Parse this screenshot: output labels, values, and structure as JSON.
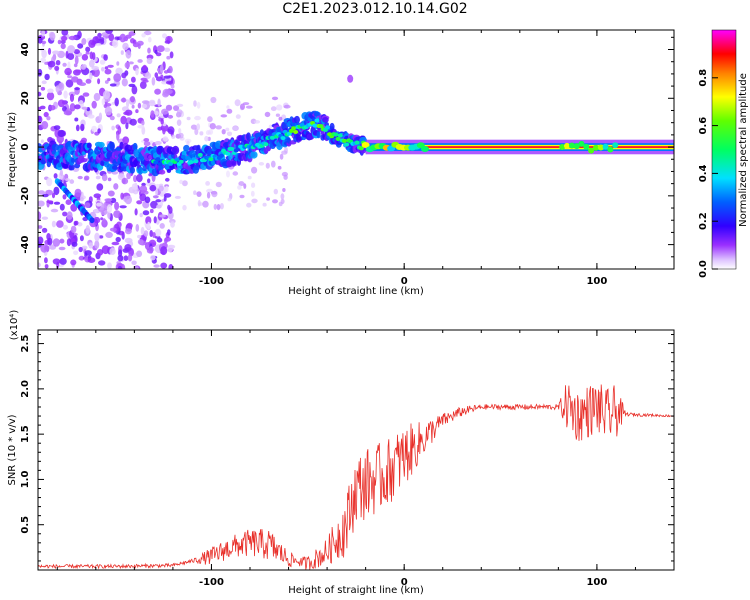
{
  "title": "C2E1.2023.012.10.14.G02",
  "colors": {
    "snr_line": "#e8302a",
    "colorscale": [
      "#ffffff",
      "#d9b3ff",
      "#8800ff",
      "#0000ff",
      "#00ffff",
      "#00ff00",
      "#ffff00",
      "#ff0000",
      "#ff00ff"
    ]
  },
  "chart_data": [
    {
      "type": "heatmap",
      "xlabel": "Height of straight line (km)",
      "ylabel": "Frequency (Hz)",
      "xlim": [
        -190,
        140
      ],
      "ylim": [
        -50,
        48
      ],
      "xticks": [
        {
          "v": -100,
          "label": "-100"
        },
        {
          "v": 0,
          "label": "0"
        },
        {
          "v": 100,
          "label": "100"
        }
      ],
      "yticks": [
        {
          "v": 40,
          "label": "40"
        },
        {
          "v": 20,
          "label": "20"
        },
        {
          "v": 0,
          "label": "0"
        },
        {
          "v": -20,
          "label": "-20"
        },
        {
          "v": -40,
          "label": "-40"
        }
      ],
      "colorbar": {
        "label": "Normalized spectral amplitude",
        "range": [
          0,
          1
        ],
        "ticks": [
          {
            "v": 0.0,
            "label": "0.0"
          },
          {
            "v": 0.2,
            "label": "0.2"
          },
          {
            "v": 0.4,
            "label": "0.4"
          },
          {
            "v": 0.6,
            "label": "0.6"
          },
          {
            "v": 0.8,
            "label": "0.8"
          }
        ]
      },
      "ridge": [
        [
          -190,
          -3
        ],
        [
          -150,
          -4
        ],
        [
          -120,
          -6
        ],
        [
          -100,
          -4
        ],
        [
          -80,
          0
        ],
        [
          -60,
          6
        ],
        [
          -45,
          10
        ],
        [
          -35,
          4
        ],
        [
          -25,
          1
        ],
        [
          -10,
          0
        ],
        [
          0,
          0
        ],
        [
          140,
          0
        ]
      ]
    },
    {
      "type": "line",
      "xlabel": "Height of straight line (km)",
      "ylabel": "SNR (10 * v/v)",
      "y_multiplier": "(x10⁴)",
      "xlim": [
        -190,
        140
      ],
      "ylim": [
        0,
        2.65
      ],
      "xticks": [
        {
          "v": -100,
          "label": "-100"
        },
        {
          "v": 0,
          "label": "0"
        },
        {
          "v": 100,
          "label": "100"
        }
      ],
      "yticks": [
        {
          "v": 0.5,
          "label": "0.5"
        },
        {
          "v": 1.0,
          "label": "1.0"
        },
        {
          "v": 1.5,
          "label": "1.5"
        },
        {
          "v": 2.0,
          "label": "2.0"
        },
        {
          "v": 2.5,
          "label": "2.5"
        }
      ],
      "series": [
        {
          "points": [
            [
              -190,
              0.04
            ],
            [
              -150,
              0.04
            ],
            [
              -120,
              0.05
            ],
            [
              -100,
              0.15
            ],
            [
              -90,
              0.25
            ],
            [
              -80,
              0.3
            ],
            [
              -70,
              0.28
            ],
            [
              -60,
              0.12
            ],
            [
              -50,
              0.07
            ],
            [
              -40,
              0.2
            ],
            [
              -30,
              0.5
            ],
            [
              -25,
              0.9
            ],
            [
              -20,
              0.95
            ],
            [
              -15,
              1.0
            ],
            [
              -10,
              1.05
            ],
            [
              -5,
              1.15
            ],
            [
              0,
              1.25
            ],
            [
              5,
              1.35
            ],
            [
              10,
              1.45
            ],
            [
              15,
              1.55
            ],
            [
              20,
              1.65
            ],
            [
              30,
              1.75
            ],
            [
              40,
              1.8
            ],
            [
              60,
              1.8
            ],
            [
              80,
              1.8
            ],
            [
              85,
              1.82
            ],
            [
              90,
              1.7
            ],
            [
              95,
              1.75
            ],
            [
              100,
              1.8
            ],
            [
              105,
              1.7
            ],
            [
              110,
              1.75
            ],
            [
              115,
              1.72
            ],
            [
              140,
              1.7
            ]
          ],
          "noise": [
            [
              -190,
              0.02
            ],
            [
              -110,
              0.02
            ],
            [
              -100,
              0.1
            ],
            [
              -70,
              0.18
            ],
            [
              -55,
              0.05
            ],
            [
              -40,
              0.15
            ],
            [
              -30,
              0.35
            ],
            [
              -20,
              0.4
            ],
            [
              0,
              0.35
            ],
            [
              10,
              0.2
            ],
            [
              20,
              0.08
            ],
            [
              40,
              0.03
            ],
            [
              80,
              0.03
            ],
            [
              85,
              0.3
            ],
            [
              110,
              0.3
            ],
            [
              115,
              0.02
            ],
            [
              140,
              0.01
            ]
          ]
        }
      ]
    }
  ]
}
